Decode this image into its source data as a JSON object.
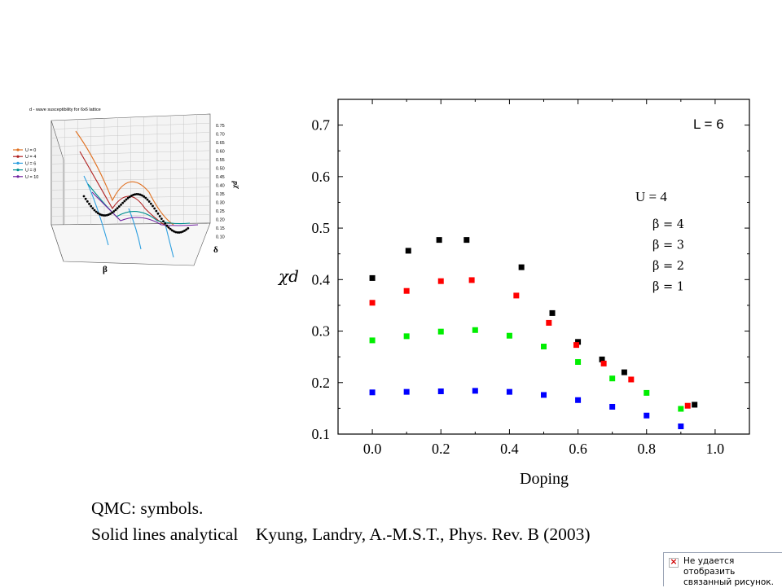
{
  "chart_data": [
    {
      "type": "scatter",
      "title": "L = 6",
      "annotation": "U = 4",
      "xlabel": "Doping",
      "ylabel": "χd",
      "xlim": [
        -0.1,
        1.1
      ],
      "ylim": [
        0.1,
        0.75
      ],
      "xticks": [
        "0.0",
        "0.2",
        "0.4",
        "0.6",
        "0.8",
        "1.0"
      ],
      "yticks": [
        "0.1",
        "0.2",
        "0.3",
        "0.4",
        "0.5",
        "0.6",
        "0.7"
      ],
      "legend_placement": "right",
      "series": [
        {
          "name": "β = 4",
          "color": "#000000",
          "x": [
            0.0,
            0.105,
            0.195,
            0.275,
            0.435,
            0.525,
            0.6,
            0.67,
            0.735,
            0.94
          ],
          "y": [
            0.403,
            0.456,
            0.477,
            0.477,
            0.424,
            0.335,
            0.279,
            0.245,
            0.22,
            0.157
          ]
        },
        {
          "name": "β = 3",
          "color": "#ff0000",
          "x": [
            0.0,
            0.1,
            0.2,
            0.29,
            0.42,
            0.515,
            0.595,
            0.675,
            0.755,
            0.92
          ],
          "y": [
            0.355,
            0.378,
            0.397,
            0.399,
            0.369,
            0.316,
            0.273,
            0.237,
            0.206,
            0.155
          ]
        },
        {
          "name": "β = 2",
          "color": "#00ee00",
          "x": [
            0.0,
            0.1,
            0.2,
            0.3,
            0.4,
            0.5,
            0.6,
            0.7,
            0.8,
            0.9
          ],
          "y": [
            0.282,
            0.29,
            0.299,
            0.302,
            0.291,
            0.27,
            0.24,
            0.208,
            0.18,
            0.149
          ]
        },
        {
          "name": "β = 1",
          "color": "#0000ff",
          "x": [
            0.0,
            0.1,
            0.2,
            0.3,
            0.4,
            0.5,
            0.6,
            0.7,
            0.8,
            0.9
          ],
          "y": [
            0.181,
            0.182,
            0.183,
            0.184,
            0.182,
            0.176,
            0.166,
            0.153,
            0.136,
            0.115
          ]
        }
      ]
    },
    {
      "type": "line",
      "title": "d - wave susceptibility for 6x6 lattice",
      "xlabel": "β",
      "ylabel": "χd",
      "zlabel": "δ",
      "zticks": [
        "0.75",
        "0.70",
        "0.65",
        "0.60",
        "0.55",
        "0.50",
        "0.45",
        "0.40",
        "0.35",
        "0.30",
        "0.25",
        "0.20",
        "0.15",
        "0.10"
      ],
      "legend_placement": "left",
      "series": [
        {
          "name": "U = 0",
          "color": "#e07020"
        },
        {
          "name": "U = 4",
          "color": "#b02020"
        },
        {
          "name": "U = 6",
          "color": "#30a0e0"
        },
        {
          "name": "U = 8",
          "color": "#009090"
        },
        {
          "name": "U = 10",
          "color": "#7020a0"
        }
      ]
    }
  ],
  "caption": {
    "line1": "QMC: symbols.",
    "line2": "Solid lines analytical    Kyung, Landry, A.-M.S.T., Phys. Rev. B (2003)"
  },
  "broken_image": {
    "line1": "Не удается отобразить",
    "line2": "связанный рисунок."
  }
}
